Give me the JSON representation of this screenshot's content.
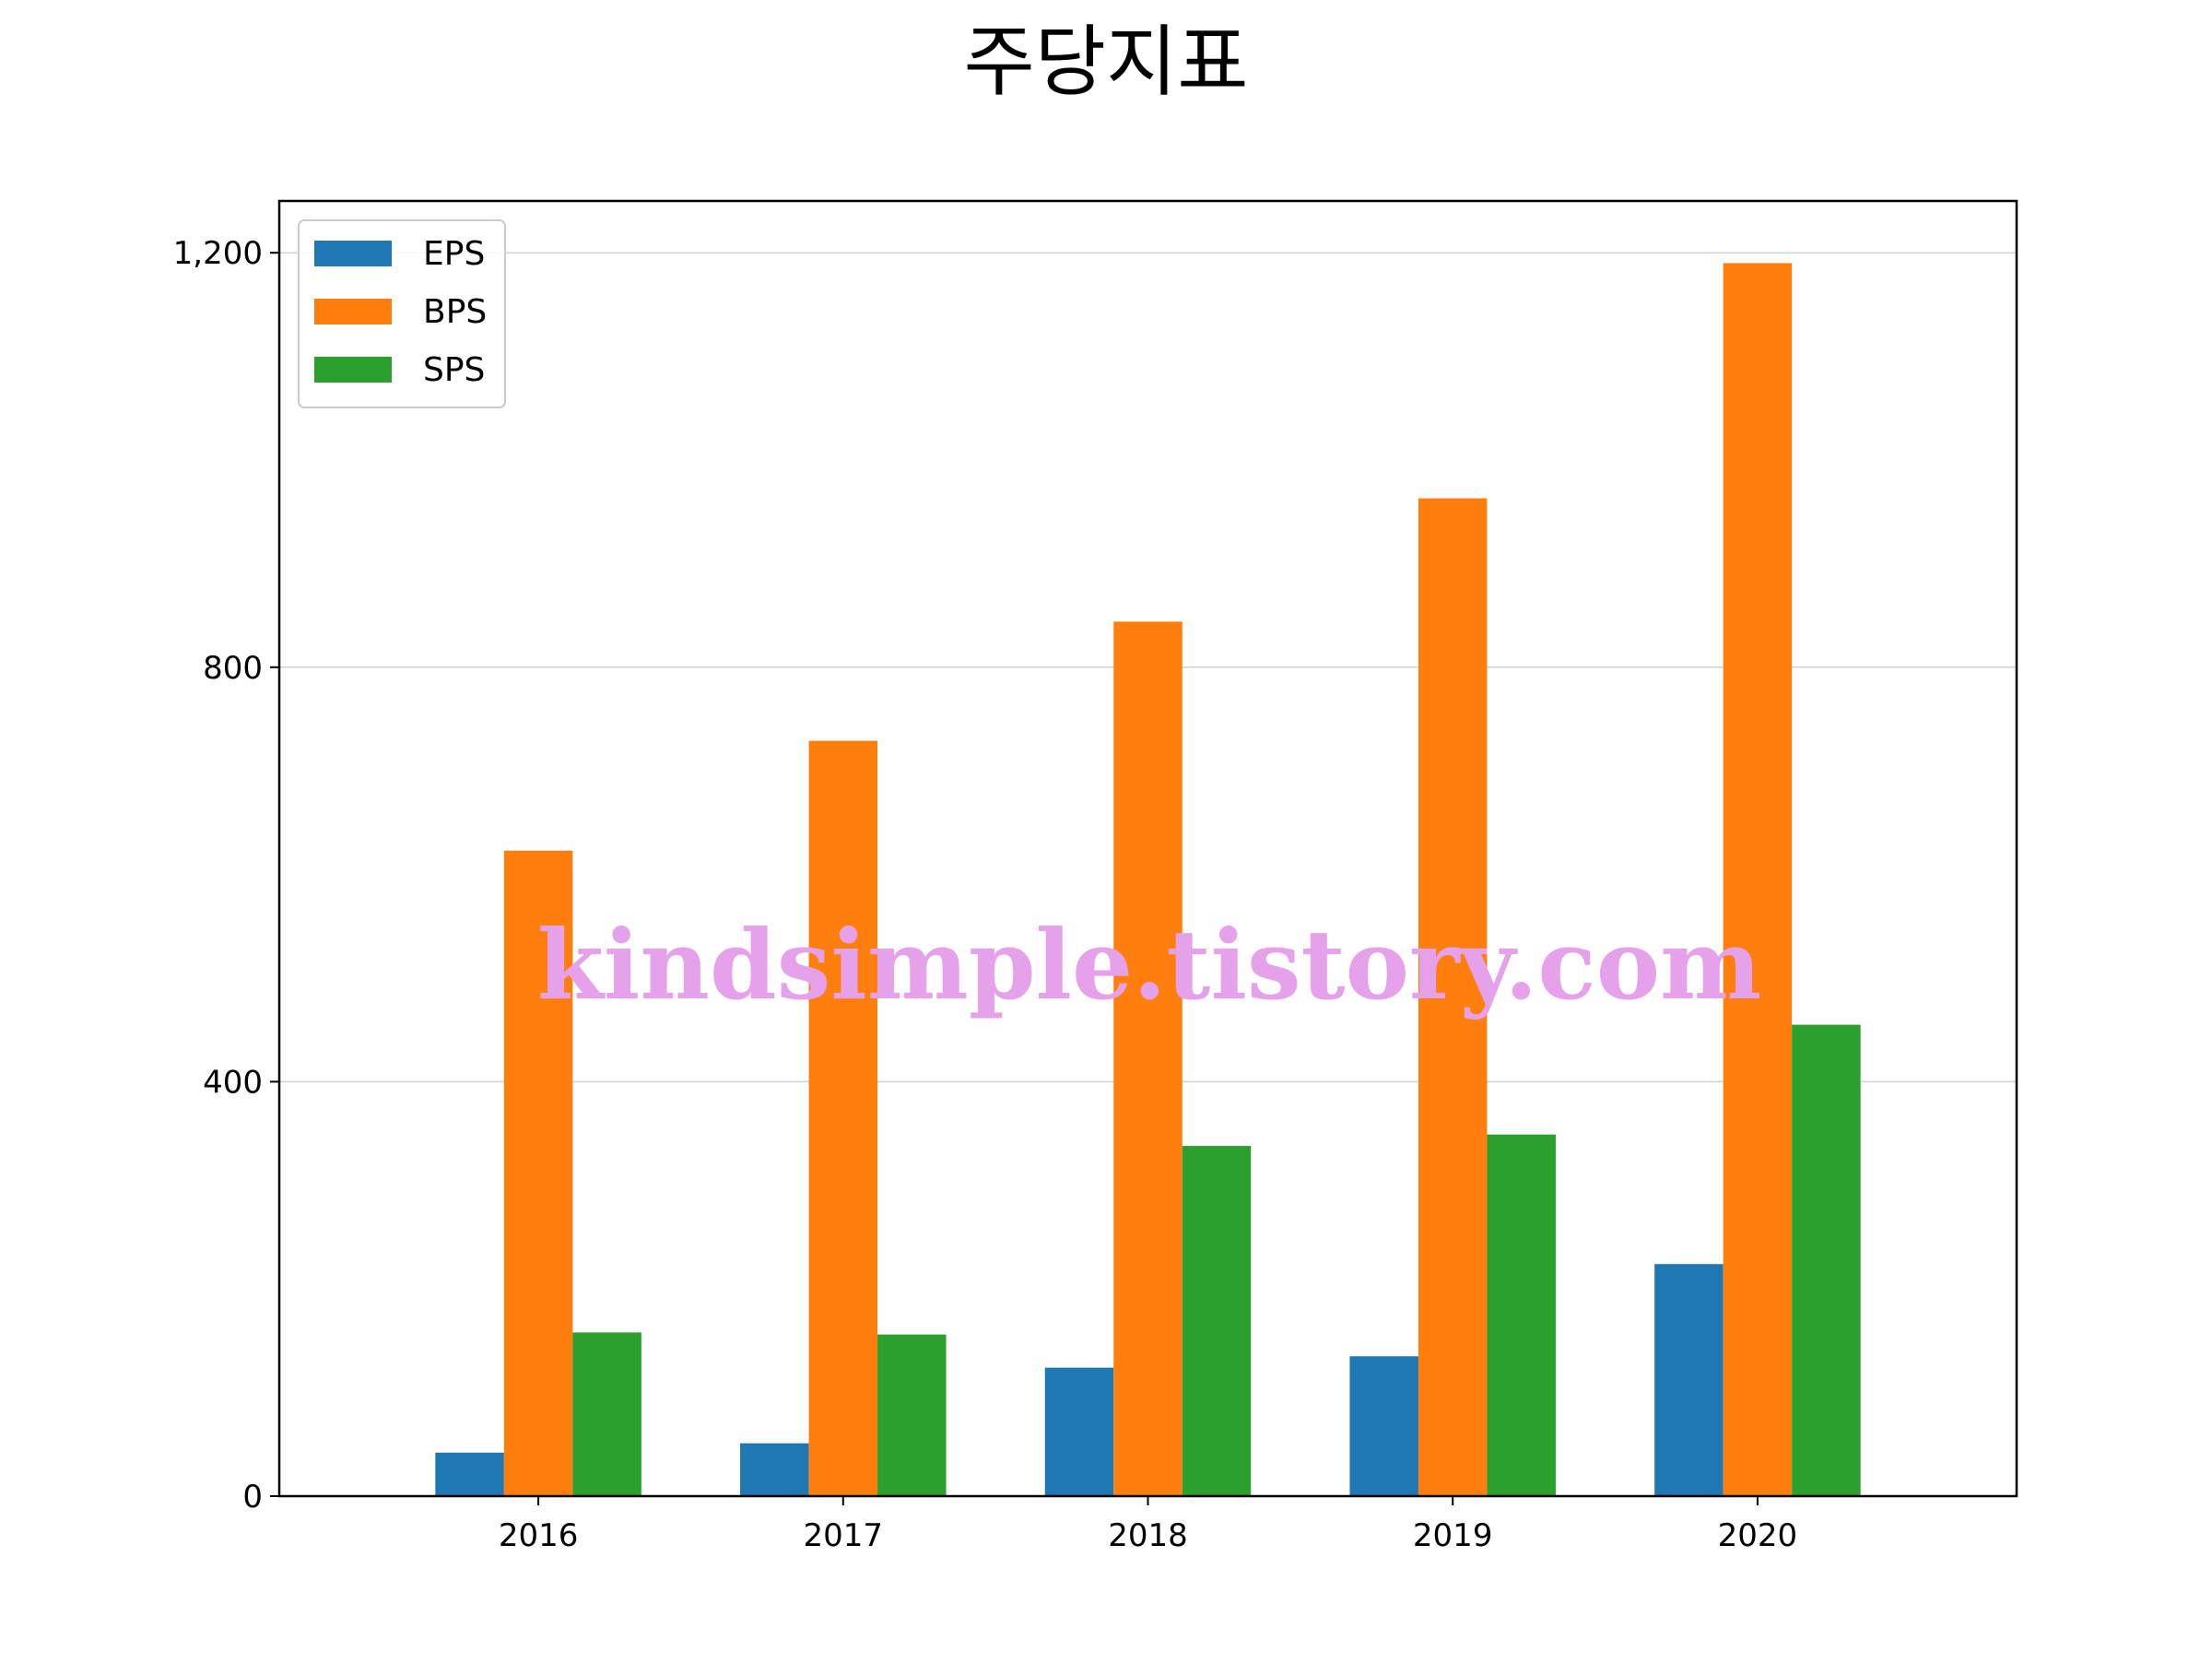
{
  "chart_data": {
    "type": "bar",
    "title": "주당지표",
    "xlabel": "",
    "ylabel": "",
    "categories": [
      "2016",
      "2017",
      "2018",
      "2019",
      "2020"
    ],
    "series": [
      {
        "name": "EPS",
        "color": "#1f77b4",
        "values": [
          42,
          51,
          124,
          135,
          224
        ]
      },
      {
        "name": "BPS",
        "color": "#ff7f0e",
        "values": [
          623,
          729,
          844,
          963,
          1190
        ]
      },
      {
        "name": "SPS",
        "color": "#2ca02c",
        "values": [
          158,
          156,
          338,
          349,
          455
        ]
      }
    ],
    "ylim": [
      0,
      1250
    ],
    "yticks": [
      0,
      400,
      800,
      1200
    ],
    "ytick_labels": [
      "0",
      "400",
      "800",
      "1,200"
    ],
    "grid": "horizontal",
    "legend_position": "upper-left",
    "watermark": "kindsimple.tistory.com"
  }
}
